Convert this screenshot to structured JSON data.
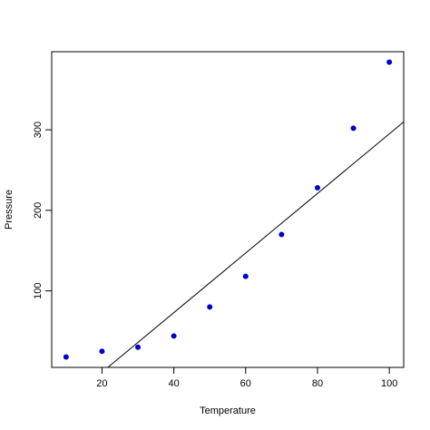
{
  "chart_data": {
    "type": "scatter",
    "title": "",
    "xlabel": "Temperature",
    "ylabel": "Pressure",
    "xlim": [
      6,
      104
    ],
    "ylim": [
      5,
      397
    ],
    "xticks": [
      20,
      40,
      60,
      80,
      100
    ],
    "yticks": [
      100,
      200,
      300
    ],
    "grid": false,
    "legend": "none",
    "point_color": "#0000CC",
    "line_color": "#000000",
    "series": [
      {
        "x": [
          10,
          20,
          30,
          40,
          50,
          60,
          70,
          80,
          90,
          100
        ],
        "y": [
          18,
          25,
          30,
          44,
          80,
          118,
          170,
          228,
          302,
          384
        ]
      }
    ],
    "fit_line": {
      "slope": 3.7,
      "intercept": -75
    }
  }
}
